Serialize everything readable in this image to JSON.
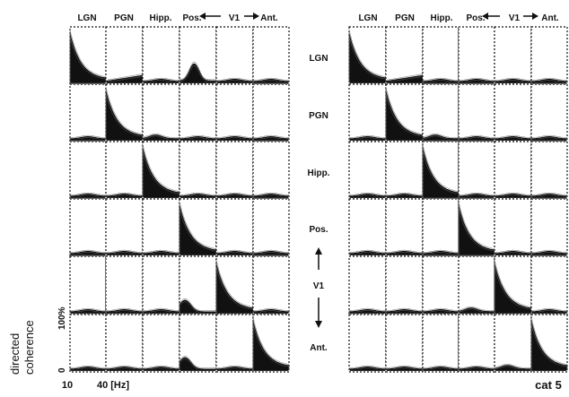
{
  "chart_data": {
    "type": "heatmap",
    "columns": [
      "LGN",
      "PGN",
      "Hipp.",
      "Pos.",
      "V1",
      "Ant."
    ],
    "rows": [
      "LGN",
      "PGN",
      "Hipp.",
      "Pos.",
      "V1",
      "Ant."
    ],
    "row_group_label": "V1",
    "x_axis": {
      "ticks": [
        "10",
        "40 [Hz]"
      ]
    },
    "y_axis": {
      "label_line_1": "directed",
      "label_line_2": "coherence",
      "ticks": [
        "100%",
        "0"
      ]
    },
    "caption": "cat 5"
  }
}
